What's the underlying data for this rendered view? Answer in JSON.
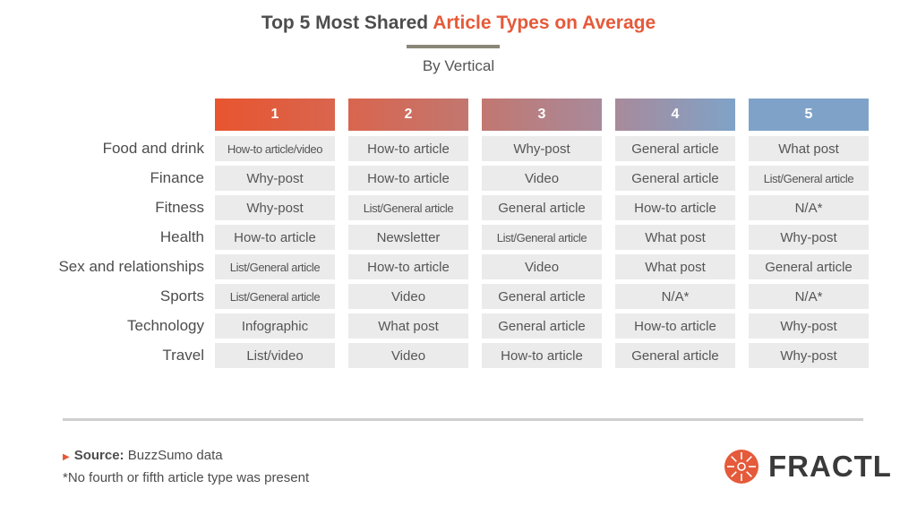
{
  "title_part1": "Top 5 Most Shared ",
  "title_part2": "Article Types on Average",
  "subtitle": "By Vertical",
  "colors": {
    "accent": "#e55a3a",
    "header_gradient": [
      "#e8552f",
      "#d9654e",
      "#c27770",
      "#a88a9b",
      "#7fa3c8"
    ]
  },
  "chart_data": {
    "type": "table",
    "columns": [
      "1",
      "2",
      "3",
      "4",
      "5"
    ],
    "rows": [
      {
        "label": "Food and drink",
        "cells": [
          "How-to article/video",
          "How-to article",
          "Why-post",
          "General article",
          "What post"
        ]
      },
      {
        "label": "Finance",
        "cells": [
          "Why-post",
          "How-to article",
          "Video",
          "General article",
          "List/General article"
        ]
      },
      {
        "label": "Fitness",
        "cells": [
          "Why-post",
          "List/General article",
          "General article",
          "How-to article",
          "N/A*"
        ]
      },
      {
        "label": "Health",
        "cells": [
          "How-to article",
          "Newsletter",
          "List/General article",
          "What post",
          "Why-post"
        ]
      },
      {
        "label": "Sex and relationships",
        "cells": [
          "List/General article",
          "How-to article",
          "Video",
          "What post",
          "General article"
        ]
      },
      {
        "label": "Sports",
        "cells": [
          "List/General article",
          "Video",
          "General article",
          "N/A*",
          "N/A*"
        ]
      },
      {
        "label": "Technology",
        "cells": [
          "Infographic",
          "What post",
          "General article",
          "How-to article",
          "Why-post"
        ]
      },
      {
        "label": "Travel",
        "cells": [
          "List/video",
          "Video",
          "How-to article",
          "General article",
          "Why-post"
        ]
      }
    ]
  },
  "footer": {
    "source_label": "Source:",
    "source_text": " BuzzSumo data",
    "footnote": "*No fourth or fifth article type was present"
  },
  "logo": {
    "text": "FRACTL",
    "icon": "fractl-sunburst-icon",
    "color": "#e55a3a"
  }
}
